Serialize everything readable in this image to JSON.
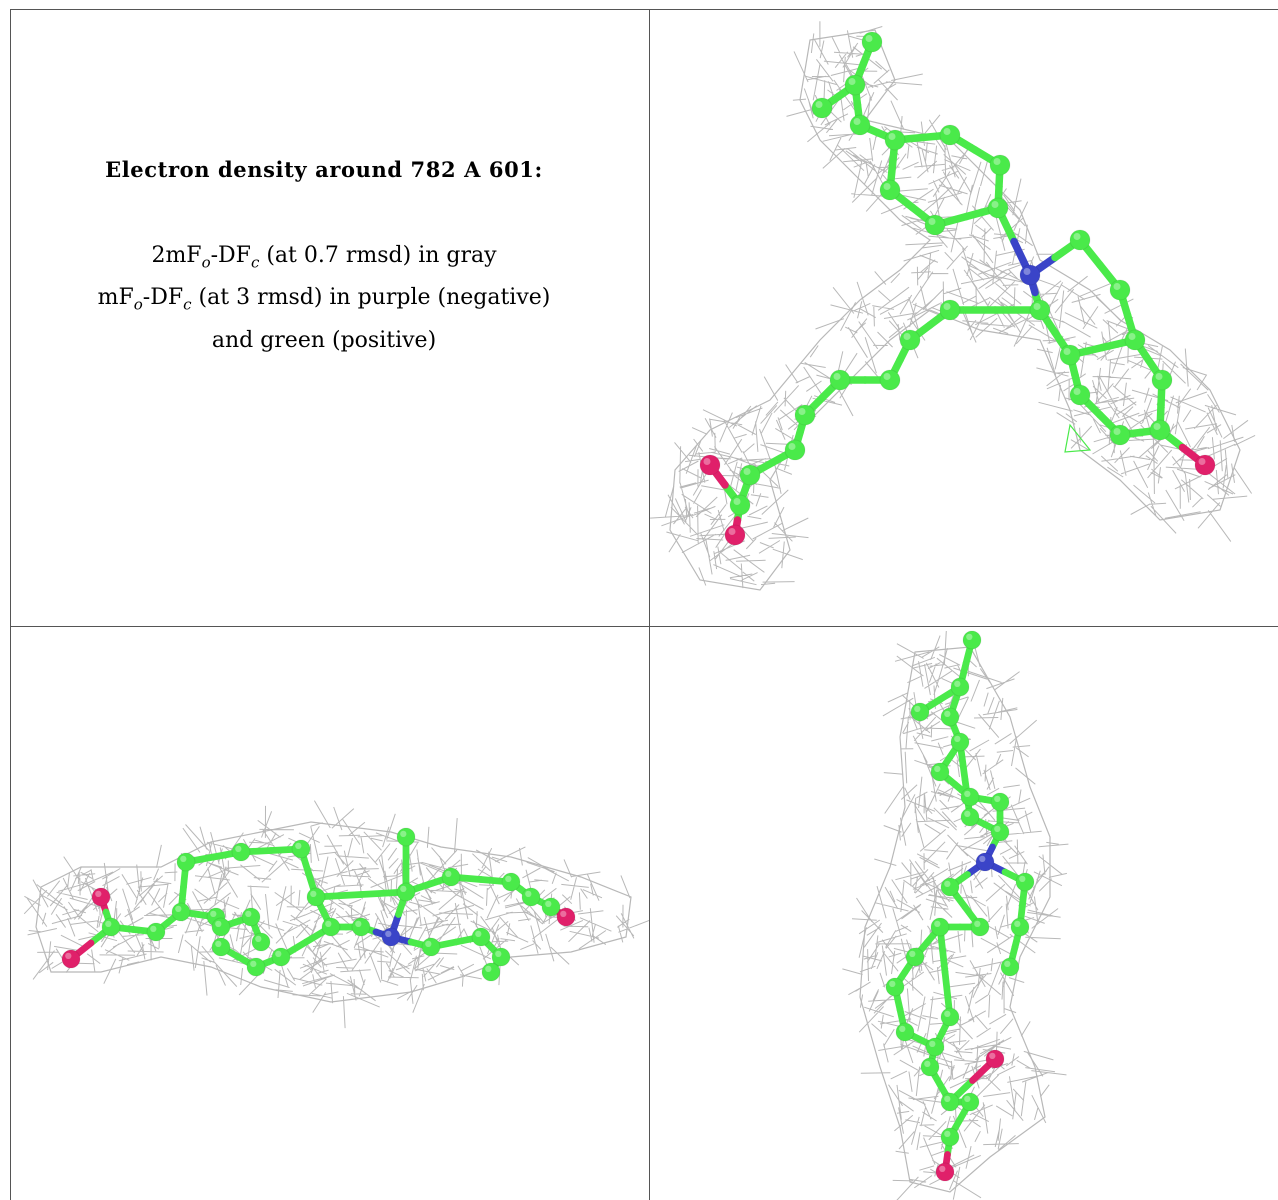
{
  "caption": {
    "title": "Electron density around 782 A 601:",
    "line1": {
      "a": "2mF",
      "o": "o",
      "b": "-DF",
      "c": "c",
      "rest": " (at 0.7 rmsd) in gray"
    },
    "line2": {
      "a": "mF",
      "o": "o",
      "b": "-DF",
      "c": "c",
      "rest": " (at 3 rmsd) in purple (negative)"
    },
    "line3": "and green (positive)"
  },
  "colors": {
    "mesh": "#b8b8b8",
    "carbon": "#4aea4a",
    "nitrogen": "#3a44c8",
    "oxygen": "#e0206a",
    "border": "#555555"
  },
  "views": [
    "view-top-right",
    "view-bottom-left",
    "view-bottom-right"
  ]
}
